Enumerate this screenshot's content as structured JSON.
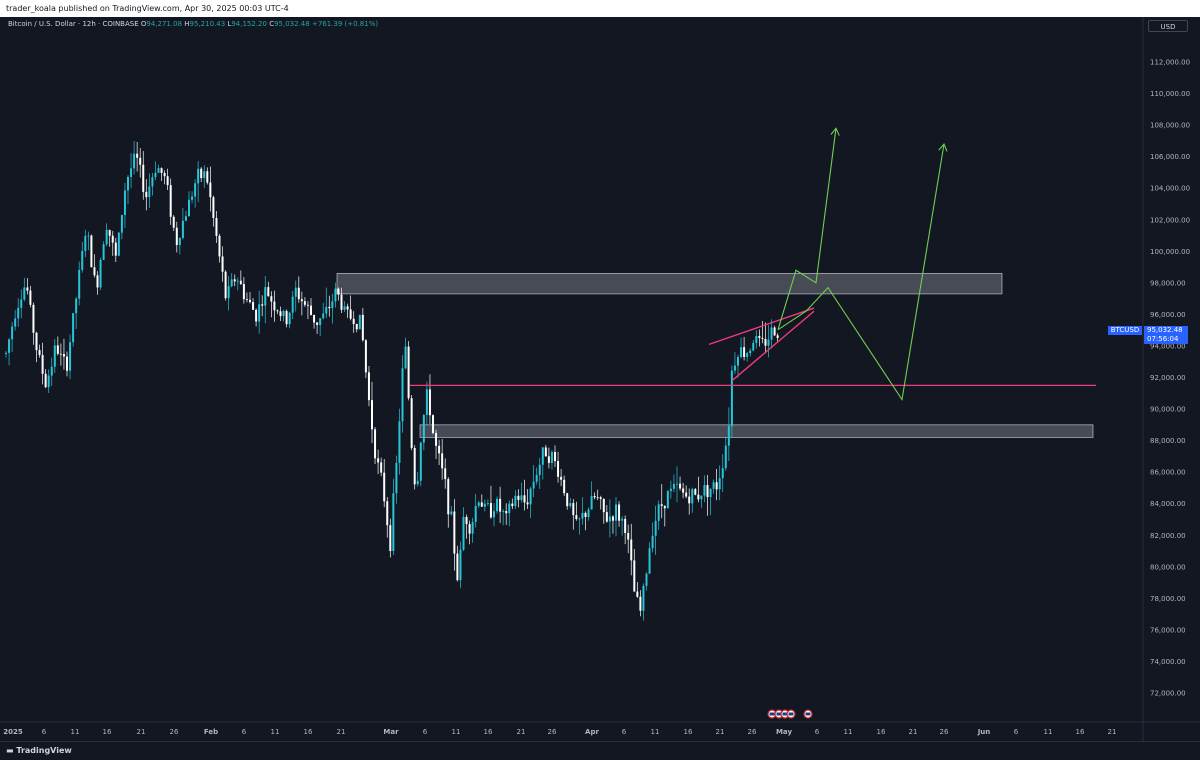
{
  "header": {
    "publisher_text": "trader_koala published on TradingView.com, Apr 30, 2025 00:03 UTC-4"
  },
  "legend": {
    "symbol": "Bitcoin / U.S. Dollar · 12h · COINBASE",
    "open_label": "O",
    "open": "94,271.08",
    "high_label": "H",
    "high": "95,210.43",
    "low_label": "L",
    "low": "94,152.20",
    "close_label": "C",
    "close": "95,032.48",
    "change": "+761.39 (+0.81%)"
  },
  "price_scale": {
    "currency": "USD",
    "symbol_tag": "BTCUSD",
    "last_price": "95,032.48",
    "countdown": "07:56:04"
  },
  "footer": {
    "brand": "TradingView"
  },
  "colors": {
    "background": "#131722",
    "candle_up": "#26c6da",
    "candle_down": "#ffffff",
    "support_line": "#f23b7a",
    "zone_fill": "#d1d4dc",
    "projection": "#6fcf4f",
    "wedge": "#f23b7a"
  },
  "chart_data": {
    "type": "candlestick",
    "title": "",
    "interval": "12h",
    "ylim": [
      70800,
      114000
    ],
    "y_ticks": [
      "72,000.00",
      "74,000.00",
      "76,000.00",
      "78,000.00",
      "80,000.00",
      "82,000.00",
      "84,000.00",
      "86,000.00",
      "88,000.00",
      "90,000.00",
      "92,000.00",
      "94,000.00",
      "96,000.00",
      "98,000.00",
      "100,000.00",
      "102,000.00",
      "104,000.00",
      "106,000.00",
      "108,000.00",
      "110,000.00",
      "112,000.00"
    ],
    "x_ticks": [
      "2025",
      "6",
      "11",
      "16",
      "21",
      "26",
      "Feb",
      "6",
      "11",
      "16",
      "21",
      "Mar",
      "6",
      "11",
      "16",
      "21",
      "26",
      "Apr",
      "6",
      "11",
      "16",
      "21",
      "26",
      "May",
      "6",
      "11",
      "16",
      "21",
      "26",
      "Jun",
      "6",
      "11",
      "16",
      "21"
    ],
    "zones": [
      {
        "from": 97300,
        "to": 98600
      },
      {
        "from": 88200,
        "to": 89000
      }
    ],
    "support_level": 91500,
    "price_path": [
      {
        "t": 0,
        "p": 93500
      },
      {
        "t": 10,
        "p": 96500
      },
      {
        "t": 20,
        "p": 98000
      },
      {
        "t": 30,
        "p": 94000
      },
      {
        "t": 40,
        "p": 91500
      },
      {
        "t": 50,
        "p": 94000
      },
      {
        "t": 60,
        "p": 92500
      },
      {
        "t": 70,
        "p": 97000
      },
      {
        "t": 80,
        "p": 101500
      },
      {
        "t": 90,
        "p": 97500
      },
      {
        "t": 100,
        "p": 102000
      },
      {
        "t": 110,
        "p": 99500
      },
      {
        "t": 120,
        "p": 104500
      },
      {
        "t": 130,
        "p": 106000
      },
      {
        "t": 140,
        "p": 103500
      },
      {
        "t": 150,
        "p": 105500
      },
      {
        "t": 160,
        "p": 104500
      },
      {
        "t": 170,
        "p": 100500
      },
      {
        "t": 180,
        "p": 102500
      },
      {
        "t": 190,
        "p": 104500
      },
      {
        "t": 200,
        "p": 105000
      },
      {
        "t": 210,
        "p": 101000
      },
      {
        "t": 220,
        "p": 97000
      },
      {
        "t": 230,
        "p": 98500
      },
      {
        "t": 240,
        "p": 97000
      },
      {
        "t": 250,
        "p": 96000
      },
      {
        "t": 260,
        "p": 97500
      },
      {
        "t": 270,
        "p": 96500
      },
      {
        "t": 280,
        "p": 95500
      },
      {
        "t": 290,
        "p": 97500
      },
      {
        "t": 300,
        "p": 96500
      },
      {
        "t": 310,
        "p": 95500
      },
      {
        "t": 320,
        "p": 96000
      },
      {
        "t": 330,
        "p": 97500
      },
      {
        "t": 340,
        "p": 96000
      },
      {
        "t": 355,
        "p": 95500
      },
      {
        "t": 362,
        "p": 91000
      },
      {
        "t": 370,
        "p": 87000
      },
      {
        "t": 378,
        "p": 84500
      },
      {
        "t": 384,
        "p": 81500
      },
      {
        "t": 390,
        "p": 86000
      },
      {
        "t": 396,
        "p": 92000
      },
      {
        "t": 400,
        "p": 94000
      },
      {
        "t": 404,
        "p": 89000
      },
      {
        "t": 410,
        "p": 84500
      },
      {
        "t": 416,
        "p": 89000
      },
      {
        "t": 422,
        "p": 91000
      },
      {
        "t": 428,
        "p": 88000
      },
      {
        "t": 434,
        "p": 86500
      },
      {
        "t": 440,
        "p": 85000
      },
      {
        "t": 446,
        "p": 82500
      },
      {
        "t": 452,
        "p": 79000
      },
      {
        "t": 458,
        "p": 83500
      },
      {
        "t": 465,
        "p": 82500
      },
      {
        "t": 472,
        "p": 84500
      },
      {
        "t": 480,
        "p": 83500
      },
      {
        "t": 490,
        "p": 84000
      },
      {
        "t": 500,
        "p": 83000
      },
      {
        "t": 510,
        "p": 84500
      },
      {
        "t": 520,
        "p": 84000
      },
      {
        "t": 530,
        "p": 86000
      },
      {
        "t": 540,
        "p": 87500
      },
      {
        "t": 550,
        "p": 86500
      },
      {
        "t": 560,
        "p": 84500
      },
      {
        "t": 570,
        "p": 82500
      },
      {
        "t": 580,
        "p": 83500
      },
      {
        "t": 590,
        "p": 84500
      },
      {
        "t": 600,
        "p": 83000
      },
      {
        "t": 610,
        "p": 83500
      },
      {
        "t": 620,
        "p": 82500
      },
      {
        "t": 628,
        "p": 78500
      },
      {
        "t": 634,
        "p": 77000
      },
      {
        "t": 640,
        "p": 79500
      },
      {
        "t": 646,
        "p": 82500
      },
      {
        "t": 652,
        "p": 83500
      },
      {
        "t": 660,
        "p": 84500
      },
      {
        "t": 670,
        "p": 85000
      },
      {
        "t": 680,
        "p": 84500
      },
      {
        "t": 690,
        "p": 84500
      },
      {
        "t": 700,
        "p": 85000
      },
      {
        "t": 710,
        "p": 85000
      },
      {
        "t": 716,
        "p": 86500
      },
      {
        "t": 722,
        "p": 88500
      },
      {
        "t": 726,
        "p": 92500
      },
      {
        "t": 732,
        "p": 93800
      },
      {
        "t": 740,
        "p": 93500
      },
      {
        "t": 748,
        "p": 94500
      },
      {
        "t": 756,
        "p": 94000
      },
      {
        "t": 764,
        "p": 94800
      },
      {
        "t": 772,
        "p": 95032
      }
    ],
    "wedge": {
      "upper": [
        {
          "t": 703,
          "p": 94100
        },
        {
          "t": 808,
          "p": 96400
        }
      ],
      "lower": [
        {
          "t": 726,
          "p": 91800
        },
        {
          "t": 808,
          "p": 96200
        }
      ]
    },
    "projections": [
      {
        "points": [
          {
            "t": 772,
            "p": 95032
          },
          {
            "t": 790,
            "p": 98800
          },
          {
            "t": 810,
            "p": 98000
          },
          {
            "t": 830,
            "p": 107800
          }
        ]
      },
      {
        "points": [
          {
            "t": 772,
            "p": 95032
          },
          {
            "t": 800,
            "p": 96200
          },
          {
            "t": 822,
            "p": 97700
          },
          {
            "t": 896,
            "p": 90600
          },
          {
            "t": 938,
            "p": 106800
          }
        ]
      }
    ]
  }
}
